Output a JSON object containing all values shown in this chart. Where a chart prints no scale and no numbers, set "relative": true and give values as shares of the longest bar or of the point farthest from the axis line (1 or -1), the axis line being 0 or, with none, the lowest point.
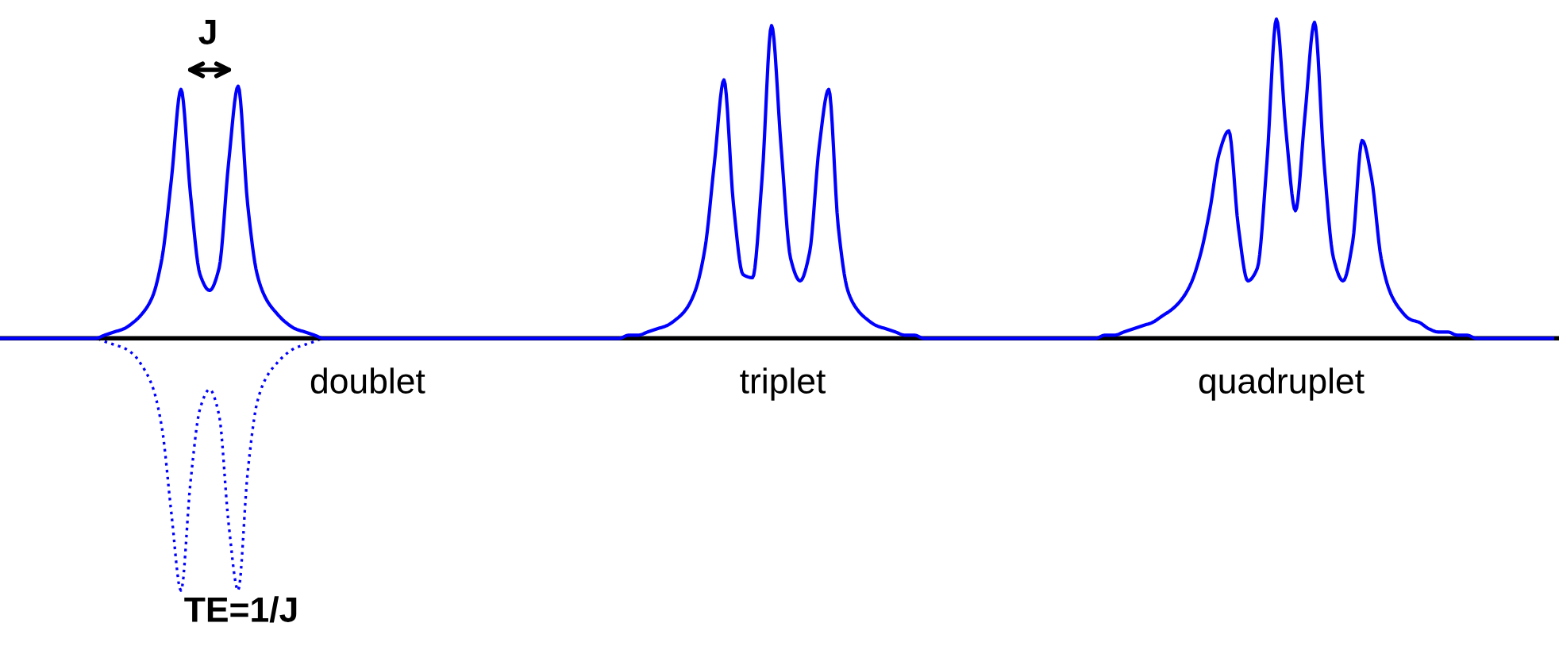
{
  "chart_data": {
    "type": "line",
    "relative": true,
    "categories": [
      null,
      null,
      null,
      null,
      null,
      null,
      null,
      null,
      null,
      null,
      null,
      null,
      null,
      null,
      null,
      null,
      null,
      null,
      null,
      null,
      null,
      null,
      null,
      null,
      null,
      null,
      null,
      null,
      null,
      null,
      null,
      null,
      null,
      null,
      null,
      null,
      null,
      null,
      null,
      null,
      null,
      null,
      null,
      null,
      null,
      null,
      null,
      null,
      null,
      null,
      null,
      null,
      null,
      null,
      null,
      null,
      null,
      null,
      null,
      null,
      null,
      null,
      null,
      null,
      null,
      null,
      null,
      null,
      null,
      null,
      null,
      null,
      null,
      null,
      null,
      null,
      null,
      null,
      null,
      null,
      null,
      null,
      null,
      null,
      null,
      null,
      null,
      null,
      null,
      null,
      null,
      null,
      null,
      null,
      null,
      null,
      null,
      null,
      null,
      null,
      null,
      null,
      null,
      null,
      null,
      null,
      null,
      null,
      null,
      null,
      null,
      null,
      null,
      null,
      null,
      null,
      null,
      null,
      null,
      null,
      null,
      null,
      null,
      null,
      null,
      null,
      null,
      null,
      null,
      null,
      null,
      null,
      null,
      null,
      null,
      null,
      null,
      null,
      null,
      null,
      null,
      null,
      null,
      null,
      null,
      null,
      null,
      null,
      null,
      null,
      null,
      null,
      null,
      null,
      null,
      null,
      null,
      null,
      null,
      null,
      null,
      null,
      null,
      null
    ],
    "series": [
      {
        "color": "#0000ff",
        "line_style": "solid",
        "values": [
          0,
          0,
          0,
          0,
          0,
          0,
          0,
          0,
          0,
          0,
          0,
          0.01,
          0.02,
          0.03,
          0.05,
          0.08,
          0.13,
          0.25,
          0.5,
          0.78,
          0.45,
          0.2,
          0.15,
          0.22,
          0.55,
          0.79,
          0.42,
          0.2,
          0.12,
          0.08,
          0.05,
          0.03,
          0.02,
          0.01,
          0,
          0,
          0,
          0,
          0,
          0,
          0,
          0,
          0,
          0,
          0,
          0,
          0,
          0,
          0,
          0,
          0,
          0,
          0,
          0,
          0,
          0,
          0,
          0,
          0,
          0,
          0,
          0,
          0,
          0,
          0,
          0,
          0.01,
          0.01,
          0.02,
          0.03,
          0.04,
          0.06,
          0.09,
          0.15,
          0.28,
          0.55,
          0.81,
          0.42,
          0.2,
          0.19,
          0.5,
          0.98,
          0.6,
          0.25,
          0.18,
          0.27,
          0.6,
          0.78,
          0.35,
          0.15,
          0.09,
          0.06,
          0.04,
          0.03,
          0.02,
          0.01,
          0.01,
          0,
          0,
          0,
          0,
          0,
          0,
          0,
          0,
          0,
          0,
          0,
          0,
          0,
          0,
          0,
          0,
          0,
          0,
          0,
          0.01,
          0.01,
          0.02,
          0.03,
          0.04,
          0.05,
          0.07,
          0.09,
          0.12,
          0.17,
          0.26,
          0.4,
          0.58,
          0.65,
          0.35,
          0.18,
          0.22,
          0.55,
          1.0,
          0.65,
          0.4,
          0.7,
          0.99,
          0.55,
          0.25,
          0.18,
          0.3,
          0.62,
          0.5,
          0.25,
          0.14,
          0.09,
          0.06,
          0.05,
          0.03,
          0.02,
          0.02,
          0.01,
          0.01,
          0,
          0,
          0,
          0,
          0,
          0,
          0,
          0,
          0
        ]
      },
      {
        "color": "#0000ff",
        "line_style": "dotted",
        "values": [
          0,
          0,
          0,
          0,
          0,
          0,
          0,
          0,
          0,
          0,
          0,
          -0.01,
          -0.02,
          -0.03,
          -0.05,
          -0.09,
          -0.15,
          -0.28,
          -0.55,
          -0.79,
          -0.45,
          -0.22,
          -0.16,
          -0.24,
          -0.58,
          -0.79,
          -0.42,
          -0.2,
          -0.12,
          -0.08,
          -0.05,
          -0.03,
          -0.02,
          -0.01,
          0,
          0,
          0,
          0,
          0,
          0,
          0,
          0,
          0,
          0,
          0,
          0,
          0,
          0,
          0,
          0,
          0,
          0,
          0,
          0,
          0,
          0,
          0,
          0,
          0,
          0,
          0,
          0,
          0,
          0,
          0,
          0,
          0,
          0,
          0,
          0,
          0,
          0,
          0,
          0,
          0,
          0,
          0,
          0,
          0,
          0,
          0,
          0,
          0,
          0,
          0,
          0,
          0,
          0,
          0,
          0,
          0,
          0,
          0,
          0,
          0,
          0,
          0,
          0,
          0,
          0,
          0,
          0,
          0,
          0,
          0,
          0,
          0,
          0,
          0,
          0,
          0,
          0,
          0,
          0,
          0,
          0,
          0,
          0,
          0,
          0,
          0,
          0,
          0,
          0,
          0,
          0,
          0,
          0,
          0,
          0,
          0,
          0,
          0,
          0,
          0,
          0,
          0,
          0,
          0,
          0,
          0,
          0,
          0,
          0,
          0,
          0,
          0,
          0,
          0,
          0,
          0,
          0,
          0,
          0,
          0,
          0,
          0,
          0,
          0,
          0,
          0,
          0,
          0,
          0
        ]
      }
    ],
    "annotations": [
      "J",
      "doublet",
      "triplet",
      "quadruplet",
      "TE=1/J"
    ]
  }
}
